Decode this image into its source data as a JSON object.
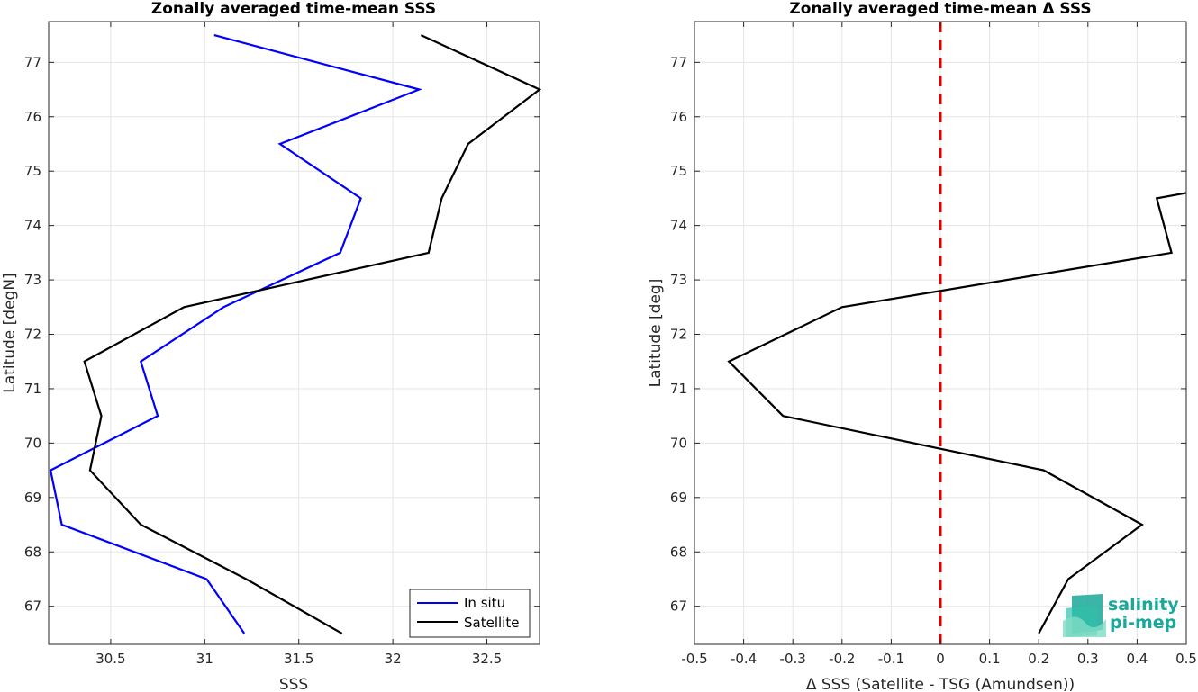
{
  "chart_data": [
    {
      "type": "line",
      "title": "Zonally averaged time-mean SSS",
      "xlabel": "SSS",
      "ylabel": "Latitude [degN]",
      "xlim": [
        30.17,
        32.78
      ],
      "ylim": [
        66.3,
        77.75
      ],
      "xticks": [
        30.5,
        31,
        31.5,
        32,
        32.5
      ],
      "xtick_labels": [
        "30.5",
        "31",
        "31.5",
        "32",
        "32.5"
      ],
      "yticks": [
        67,
        68,
        69,
        70,
        71,
        72,
        73,
        74,
        75,
        76,
        77
      ],
      "ytick_labels": [
        "67",
        "68",
        "69",
        "70",
        "71",
        "72",
        "73",
        "74",
        "75",
        "76",
        "77"
      ],
      "grid": true,
      "legend": "bottom-right",
      "series": [
        {
          "name": "In situ",
          "color": "#0000ff",
          "x": [
            31.21,
            31.01,
            30.24,
            30.18,
            30.75,
            30.66,
            31.1,
            31.72,
            31.83,
            31.4,
            32.14,
            31.05
          ],
          "y": [
            66.5,
            67.5,
            68.5,
            69.5,
            70.5,
            71.5,
            72.5,
            73.5,
            74.5,
            75.5,
            76.5,
            77.5
          ]
        },
        {
          "name": "Satellite",
          "color": "#000000",
          "x": [
            31.73,
            31.22,
            30.66,
            30.39,
            30.45,
            30.36,
            30.89,
            32.19,
            32.26,
            32.4,
            32.78,
            32.15
          ],
          "y": [
            66.5,
            67.5,
            68.5,
            69.5,
            70.5,
            71.5,
            72.5,
            73.5,
            74.5,
            75.5,
            76.5,
            77.5
          ]
        }
      ]
    },
    {
      "type": "line",
      "title": "Zonally averaged time-mean Δ SSS",
      "xlabel": "Δ SSS (Satellite - TSG (Amundsen))",
      "ylabel": "Latitude [deg]",
      "xlim": [
        -0.5,
        0.5
      ],
      "ylim": [
        66.3,
        77.75
      ],
      "xticks": [
        -0.5,
        -0.4,
        -0.3,
        -0.2,
        -0.1,
        0,
        0.1,
        0.2,
        0.3,
        0.4,
        0.5
      ],
      "xtick_labels": [
        "-0.5",
        "-0.4",
        "-0.3",
        "-0.2",
        "-0.1",
        "0",
        "0.1",
        "0.2",
        "0.3",
        "0.4",
        "0.5"
      ],
      "yticks": [
        67,
        68,
        69,
        70,
        71,
        72,
        73,
        74,
        75,
        76,
        77
      ],
      "ytick_labels": [
        "67",
        "68",
        "69",
        "70",
        "71",
        "72",
        "73",
        "74",
        "75",
        "76",
        "77"
      ],
      "grid": true,
      "reference_line": {
        "x": 0,
        "color": "#dd0000",
        "style": "dashed"
      },
      "series": [
        {
          "color": "#000000",
          "x": [
            0.2,
            0.26,
            0.41,
            0.21,
            -0.32,
            -0.43,
            -0.2,
            0.47,
            0.44,
            0.5
          ],
          "y": [
            66.5,
            67.5,
            68.5,
            69.5,
            70.5,
            71.5,
            72.5,
            73.5,
            74.5,
            74.6
          ]
        }
      ]
    }
  ],
  "logo": {
    "line1": "salinity",
    "line2": "pi-mep",
    "color": "#1aa89a"
  }
}
